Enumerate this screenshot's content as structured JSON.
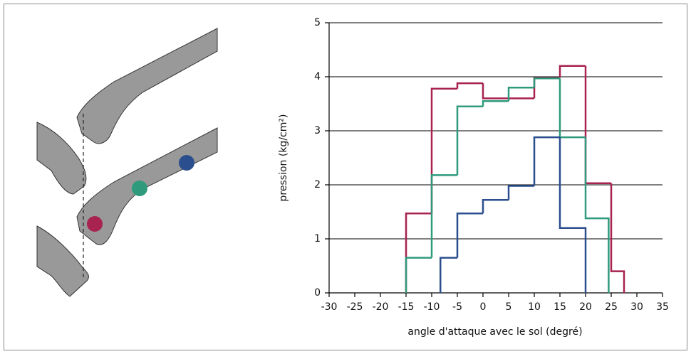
{
  "chart_data": {
    "type": "histogram",
    "xlabel": "angle d'attaque avec le sol (degré)",
    "ylabel": "pression (kg/cm²)",
    "xlim": [
      -30,
      35
    ],
    "xticks": [
      -30,
      -25,
      -20,
      -15,
      -10,
      -5,
      0,
      5,
      10,
      15,
      20,
      25,
      30,
      35
    ],
    "ylim": [
      0,
      5
    ],
    "yticks": [
      0,
      1,
      2,
      3,
      4,
      5
    ],
    "grid": true,
    "series": [
      {
        "color": "#a8234f",
        "bins": [
          -15,
          -10,
          -5,
          0,
          5,
          10,
          15,
          20,
          25,
          27.5
        ],
        "values": [
          1.47,
          3.78,
          3.88,
          3.6,
          3.6,
          3.98,
          4.2,
          2.03,
          0.4
        ]
      },
      {
        "color": "#2f9a7c",
        "bins": [
          -15,
          -10,
          -5,
          0,
          5,
          10,
          15,
          20,
          24.5
        ],
        "values": [
          0.65,
          2.18,
          3.45,
          3.55,
          3.8,
          3.97,
          2.88,
          1.38
        ]
      },
      {
        "color": "#2b4f8e",
        "bins": [
          -8.3,
          -5,
          0,
          5,
          10,
          15,
          20
        ],
        "values": [
          0.65,
          1.47,
          1.72,
          1.98,
          2.88,
          1.2
        ]
      }
    ]
  }
}
